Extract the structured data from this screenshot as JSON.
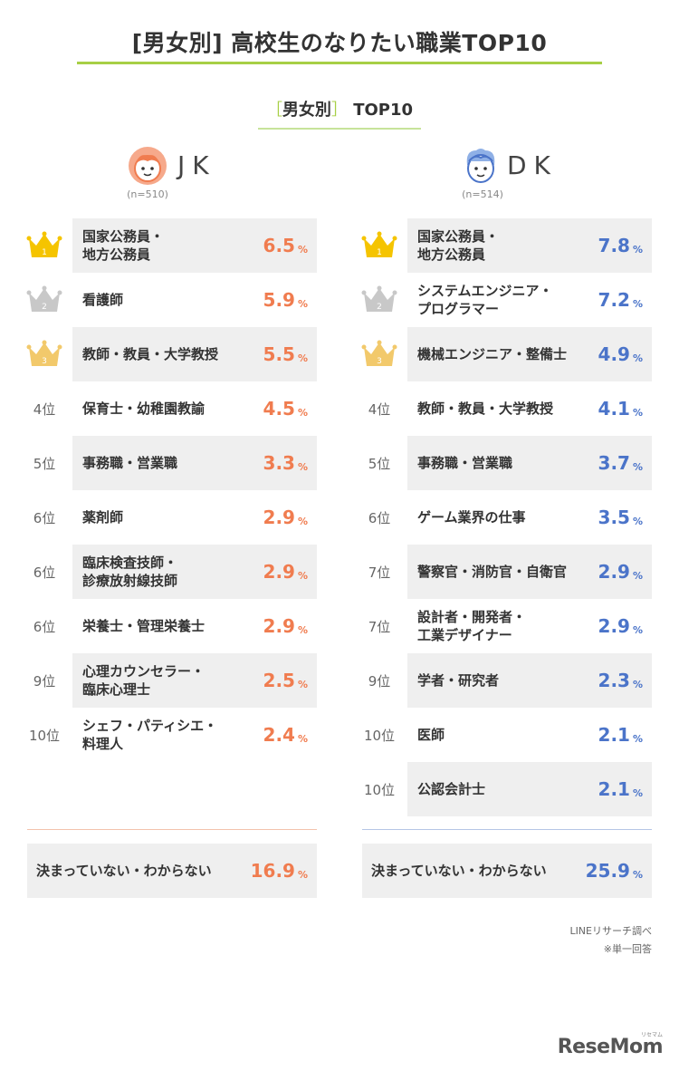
{
  "title": "[男女別] 高校生のなりたい職業TOP10",
  "subtitle": {
    "open": "［",
    "label": "男女別",
    "close": "］",
    "suffix": "TOP10"
  },
  "pct_unit": "%",
  "colors": {
    "accent": "#a7cf45",
    "jk": "#f07c4f",
    "dk": "#4b74c9",
    "gold": "#f5c400",
    "silver": "#c8c8c8",
    "bronze": "#f2c96b"
  },
  "chart_data": {
    "type": "table",
    "groups": [
      {
        "key": "jk",
        "name": "JK",
        "n": "(n=510)",
        "rows": [
          {
            "rank": "1",
            "rank_label": "",
            "lines": [
              "国家公務員・",
              "地方公務員"
            ],
            "value": 6.5
          },
          {
            "rank": "2",
            "rank_label": "",
            "lines": [
              "看護師"
            ],
            "value": 5.9
          },
          {
            "rank": "3",
            "rank_label": "",
            "lines": [
              "教師・教員・大学教授"
            ],
            "value": 5.5
          },
          {
            "rank": "4",
            "rank_label": "4位",
            "lines": [
              "保育士・幼稚園教諭"
            ],
            "value": 4.5
          },
          {
            "rank": "5",
            "rank_label": "5位",
            "lines": [
              "事務職・営業職"
            ],
            "value": 3.3
          },
          {
            "rank": "6",
            "rank_label": "6位",
            "lines": [
              "薬剤師"
            ],
            "value": 2.9
          },
          {
            "rank": "6",
            "rank_label": "6位",
            "lines": [
              "臨床検査技師・",
              "診療放射線技師"
            ],
            "value": 2.9
          },
          {
            "rank": "6",
            "rank_label": "6位",
            "lines": [
              "栄養士・管理栄養士"
            ],
            "value": 2.9
          },
          {
            "rank": "9",
            "rank_label": "9位",
            "lines": [
              "心理カウンセラー・",
              "臨床心理士"
            ],
            "value": 2.5
          },
          {
            "rank": "10",
            "rank_label": "10位",
            "lines": [
              "シェフ・パティシエ・",
              "料理人"
            ],
            "value": 2.4
          }
        ],
        "undecided": {
          "label": "決まっていない・わからない",
          "value": 16.9
        }
      },
      {
        "key": "dk",
        "name": "DK",
        "n": "(n=514)",
        "rows": [
          {
            "rank": "1",
            "rank_label": "",
            "lines": [
              "国家公務員・",
              "地方公務員"
            ],
            "value": 7.8
          },
          {
            "rank": "2",
            "rank_label": "",
            "lines": [
              "システムエンジニア・",
              "プログラマー"
            ],
            "value": 7.2
          },
          {
            "rank": "3",
            "rank_label": "",
            "lines": [
              "機械エンジニア・整備士"
            ],
            "value": 4.9
          },
          {
            "rank": "4",
            "rank_label": "4位",
            "lines": [
              "教師・教員・大学教授"
            ],
            "value": 4.1
          },
          {
            "rank": "5",
            "rank_label": "5位",
            "lines": [
              "事務職・営業職"
            ],
            "value": 3.7
          },
          {
            "rank": "6",
            "rank_label": "6位",
            "lines": [
              "ゲーム業界の仕事"
            ],
            "value": 3.5
          },
          {
            "rank": "7",
            "rank_label": "7位",
            "lines": [
              "警察官・消防官・自衛官"
            ],
            "value": 2.9
          },
          {
            "rank": "7",
            "rank_label": "7位",
            "lines": [
              "設計者・開発者・",
              "工業デザイナー"
            ],
            "value": 2.9
          },
          {
            "rank": "9",
            "rank_label": "9位",
            "lines": [
              "学者・研究者"
            ],
            "value": 2.3
          },
          {
            "rank": "10",
            "rank_label": "10位",
            "lines": [
              "医師"
            ],
            "value": 2.1
          },
          {
            "rank": "10",
            "rank_label": "10位",
            "lines": [
              "公認会計士"
            ],
            "value": 2.1
          }
        ],
        "undecided": {
          "label": "決まっていない・わからない",
          "value": 25.9
        }
      }
    ]
  },
  "notes": {
    "source": "LINEリサーチ調べ",
    "single": "※単一回答"
  },
  "logo": {
    "text": "ReseMom",
    "kana": "リセマム"
  }
}
